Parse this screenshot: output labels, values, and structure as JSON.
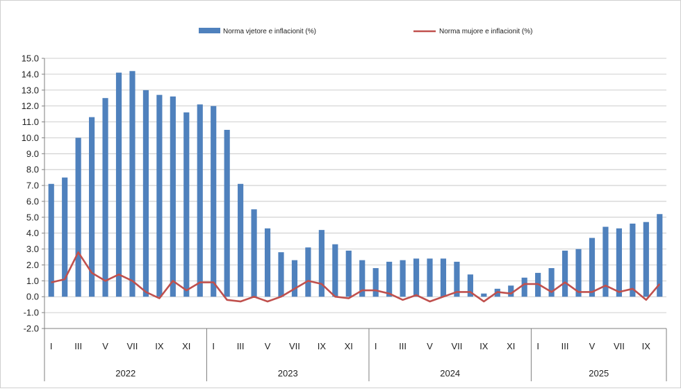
{
  "chart_data": {
    "type": "bar",
    "legend": {
      "placement": "top"
    },
    "grid": true,
    "ylim": [
      -2.0,
      15.0
    ],
    "y_tick_step": 1.0,
    "y_ticks": [
      "15.0",
      "14.0",
      "13.0",
      "12.0",
      "11.0",
      "10.0",
      "9.0",
      "8.0",
      "7.0",
      "6.0",
      "5.0",
      "4.0",
      "3.0",
      "2.0",
      "1.0",
      "0.0",
      "-1.0",
      "-2.0"
    ],
    "month_labels": [
      "I",
      "",
      "III",
      "",
      "V",
      "",
      "VII",
      "",
      "IX",
      "",
      "XI",
      "",
      "I",
      "",
      "III",
      "",
      "V",
      "",
      "VII",
      "",
      "IX",
      "",
      "XI",
      "",
      "I",
      "",
      "III",
      "",
      "V",
      "",
      "VII",
      "",
      "IX",
      "",
      "XI",
      "",
      "I",
      "",
      "III",
      "",
      "V",
      "",
      "VII",
      "",
      "IX",
      ""
    ],
    "years": [
      {
        "label": "2022",
        "months": 12
      },
      {
        "label": "2023",
        "months": 12
      },
      {
        "label": "2024",
        "months": 12
      },
      {
        "label": "2025",
        "months": 10
      }
    ],
    "series": [
      {
        "name": "Norma vjetore e inflacionit (%)",
        "type": "bar",
        "color": "#4f81bd",
        "values": [
          7.1,
          7.5,
          10.0,
          11.3,
          12.5,
          14.1,
          14.2,
          13.0,
          12.7,
          12.6,
          11.6,
          12.1,
          12.0,
          10.5,
          7.1,
          5.5,
          4.3,
          2.8,
          2.3,
          3.1,
          4.2,
          3.3,
          2.9,
          2.3,
          1.8,
          2.2,
          2.3,
          2.4,
          2.4,
          2.4,
          2.2,
          1.4,
          0.2,
          0.5,
          0.7,
          1.2,
          1.5,
          1.8,
          2.9,
          3.0,
          3.7,
          4.4,
          4.3,
          4.6,
          4.7,
          5.2
        ]
      },
      {
        "name": "Norma mujore e inflacionit (%)",
        "type": "line",
        "color": "#c0504d",
        "values": [
          0.9,
          1.1,
          2.8,
          1.5,
          1.0,
          1.4,
          1.0,
          0.3,
          -0.1,
          1.0,
          0.4,
          0.9,
          0.9,
          -0.2,
          -0.3,
          0.0,
          -0.3,
          0.0,
          0.5,
          1.0,
          0.8,
          0.0,
          -0.1,
          0.4,
          0.4,
          0.2,
          -0.2,
          0.1,
          -0.3,
          0.0,
          0.3,
          0.3,
          -0.3,
          0.3,
          0.2,
          0.8,
          0.8,
          0.3,
          0.9,
          0.3,
          0.3,
          0.7,
          0.3,
          0.5,
          -0.2,
          0.8
        ]
      }
    ]
  }
}
